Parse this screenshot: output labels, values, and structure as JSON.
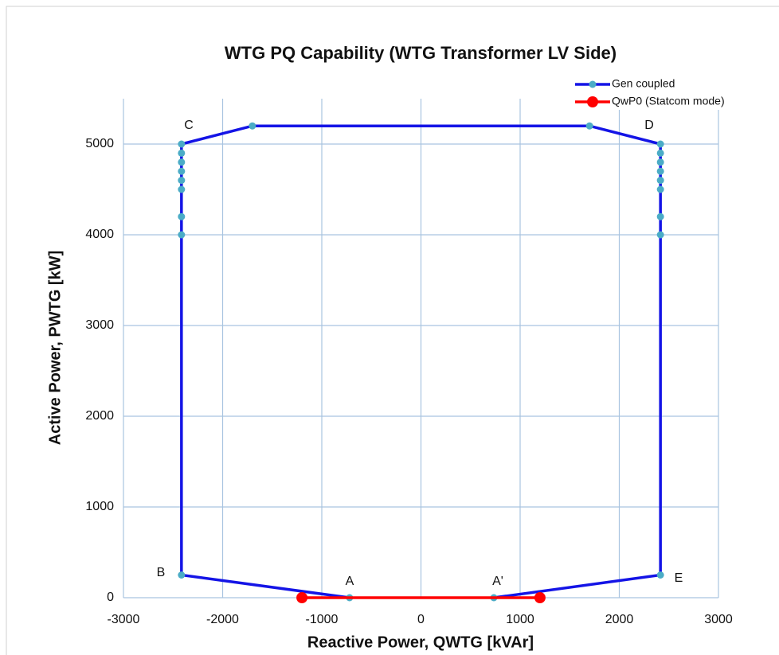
{
  "chart_data": {
    "type": "scatter_line",
    "title": "WTG PQ Capability (WTG Transformer LV Side)",
    "x_label": "Reactive Power, QWTG [kVAr]",
    "y_label": "Active Power, PWTG [kW]",
    "xlim": [
      -3000,
      3000
    ],
    "xticks": [
      -3000,
      -2000,
      -1000,
      0,
      1000,
      2000,
      3000
    ],
    "ylim": [
      0,
      5500
    ],
    "yticks": [
      0,
      1000,
      2000,
      3000,
      4000,
      5000
    ],
    "grid": true,
    "legend": "top-right",
    "annotations": [
      "C",
      "D",
      "B",
      "E",
      "A",
      "A'"
    ],
    "series": [
      {
        "name": "Gen coupled",
        "color": "#1414e6",
        "marker_color": "#4bacc6",
        "x": [
          -720,
          -2415,
          -2415,
          -2415,
          -2415,
          -2415,
          -2415,
          -2415,
          -2415,
          -2415,
          -1700,
          1700,
          2415,
          2415,
          2415,
          2415,
          2415,
          2415,
          2415,
          2415,
          2415,
          735
        ],
        "values": [
          0,
          250,
          4000,
          4200,
          4500,
          4600,
          4700,
          4800,
          4900,
          5000,
          5200,
          5200,
          5000,
          4900,
          4800,
          4700,
          4600,
          4500,
          4200,
          4000,
          250,
          0
        ]
      },
      {
        "name": "QwP0 (Statcom mode)",
        "color": "#ff0000",
        "marker_color": "#ff0000",
        "x": [
          -1200,
          1200
        ],
        "values": [
          0,
          0
        ]
      }
    ]
  }
}
